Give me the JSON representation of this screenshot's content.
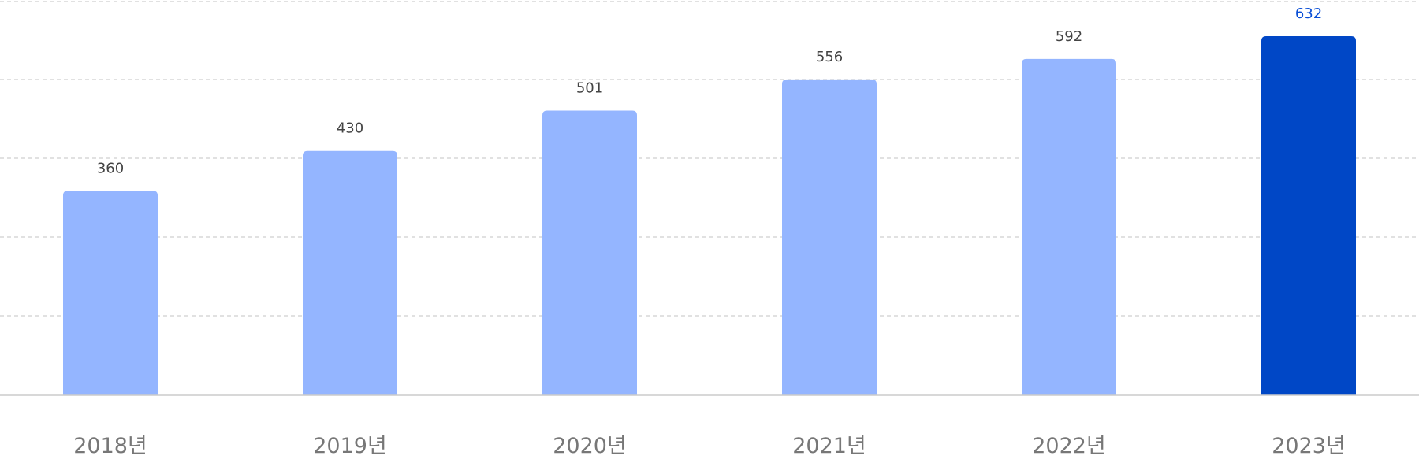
{
  "chart_data": {
    "type": "bar",
    "categories": [
      "2018년",
      "2019년",
      "2020년",
      "2021년",
      "2022년",
      "2023년"
    ],
    "values": [
      360,
      430,
      501,
      556,
      592,
      632
    ],
    "value_labels": [
      "360",
      "430",
      "501",
      "556",
      "592",
      "632"
    ],
    "ylim": [
      0,
      650
    ],
    "grid": true,
    "highlight_index": 5,
    "colors": {
      "bar": "#94b5ff",
      "bar_highlight": "#0047c6",
      "label_highlight": "#0a4fd6"
    }
  }
}
